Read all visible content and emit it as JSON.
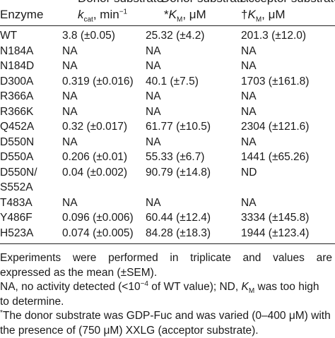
{
  "header": {
    "top": [
      "Donor substrate",
      "Donor substrate",
      "Acceptor substrate"
    ],
    "enzyme_label": "Enzyme",
    "kcat_symbol": "k",
    "kcat_sub": "cat",
    "kcat_unit": ", min",
    "kcat_exp": "−1",
    "donor_km_mark": "*",
    "km_symbol": "K",
    "km_sub": "M",
    "km_unit": ", μM",
    "acceptor_km_mark": "†"
  },
  "rows": [
    {
      "enzyme": "WT",
      "kcat": "3.8 (±0.05)",
      "donor_km": "25.32 (±4.2)",
      "acceptor_km": "201.3 (±12.0)"
    },
    {
      "enzyme": "N184A",
      "kcat": "NA",
      "donor_km": "NA",
      "acceptor_km": "NA"
    },
    {
      "enzyme": "N184D",
      "kcat": "NA",
      "donor_km": "NA",
      "acceptor_km": "NA"
    },
    {
      "enzyme": "D300A",
      "kcat": "0.319 (±0.016)",
      "donor_km": "40.1 (±7.5)",
      "acceptor_km": "1703 (±161.8)"
    },
    {
      "enzyme": "R366A",
      "kcat": "NA",
      "donor_km": "NA",
      "acceptor_km": "NA"
    },
    {
      "enzyme": "R366K",
      "kcat": "NA",
      "donor_km": "NA",
      "acceptor_km": "NA"
    },
    {
      "enzyme": "Q452A",
      "kcat": "0.32 (±0.017)",
      "donor_km": "61.77 (±10.5)",
      "acceptor_km": "2304 (±121.6)"
    },
    {
      "enzyme": "D550N",
      "kcat": "NA",
      "donor_km": "NA",
      "acceptor_km": "NA"
    },
    {
      "enzyme": "D550A",
      "kcat": "0.206 (±0.01)",
      "donor_km": "55.33 (±6.7)",
      "acceptor_km": "1441 (±65.26)"
    },
    {
      "enzyme": "D550N/",
      "kcat": "0.04 (±0.002)",
      "donor_km": "90.79 (±14.8)",
      "acceptor_km": "ND"
    },
    {
      "enzyme": "S552A",
      "kcat": "",
      "donor_km": "",
      "acceptor_km": ""
    },
    {
      "enzyme": "T483A",
      "kcat": "NA",
      "donor_km": "NA",
      "acceptor_km": "NA"
    },
    {
      "enzyme": "Y486F",
      "kcat": "0.096 (±0.006)",
      "donor_km": "60.44 (±12.4)",
      "acceptor_km": "3334 (±145.8)"
    },
    {
      "enzyme": "H523A",
      "kcat": "0.074 (±0.005)",
      "donor_km": "84.28 (±18.3)",
      "acceptor_km": "1944 (±123.4)"
    }
  ],
  "notes": {
    "line1": "Experiments were performed in triplicate and values are",
    "line2": "expressed as the mean (±SEM).",
    "na_a": "NA, no activity detected (<10",
    "na_exp": "−4",
    "na_b": " of WT value); ND, ",
    "na_k": "K",
    "na_sub": "M",
    "na_c": " was too high",
    "line4": "to determine.",
    "star_mark": "*",
    "star_text": "The donor substrate was GDP-Fuc and was varied (0–400 μM) with",
    "line6": "the presence of (750 μM) XXLG (acceptor substrate)."
  }
}
